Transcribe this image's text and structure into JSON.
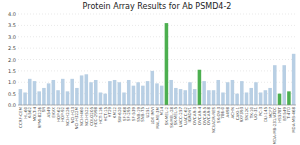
{
  "chart_data": {
    "type": "bar",
    "title": "Protein Array Results for Ab PSMD4-2",
    "categories": [
      "CCRF-CEM",
      "HL-60",
      "K-562",
      "MOLT-4",
      "RPMI-8226",
      "SR",
      "A549",
      "EKVX",
      "HOP-62",
      "HOP-92",
      "NCI-H226",
      "NCI-H23",
      "NCI-H322M",
      "NCI-H460",
      "NCI-H522",
      "COLO205",
      "HCC-2998",
      "HCT-116",
      "HCT-15",
      "HT29",
      "KM12",
      "SW-620",
      "SF-268",
      "SF-295",
      "SF-539",
      "SNB-19",
      "SNB-75",
      "U251",
      "LOX IMVI",
      "MALME-3M",
      "M14",
      "SK-MEL-2",
      "SK-MEL-28",
      "SK-MEL-5",
      "UACC-257",
      "UACC-62",
      "IGROV1",
      "OVCAR-3",
      "OVCAR-4",
      "OVCAR-5",
      "OVCAR-8",
      "NCI/ADR-RES",
      "SK-OV-3",
      "786-0",
      "A498",
      "ACHN",
      "CAKI-1",
      "RXF393",
      "SN12C",
      "TK-10",
      "UO-31",
      "PC-3",
      "DU-145",
      "MCF7",
      "MDA-MB-231/ATCC",
      "HS578T",
      "BT-549",
      "T-47D",
      "MDA-MB-468"
    ],
    "values": [
      0.7,
      0.55,
      1.15,
      1.05,
      0.6,
      0.75,
      0.95,
      1.1,
      0.65,
      1.15,
      0.6,
      1.15,
      0.75,
      1.3,
      1.35,
      1.0,
      1.1,
      0.55,
      0.5,
      1.05,
      1.1,
      1.0,
      0.55,
      1.1,
      0.85,
      1.0,
      0.85,
      1.05,
      1.5,
      0.95,
      0.85,
      3.6,
      1.1,
      0.75,
      0.7,
      0.65,
      1.0,
      0.7,
      1.55,
      1.05,
      0.65,
      0.65,
      1.1,
      0.55,
      1.0,
      1.1,
      0.5,
      1.05,
      0.55,
      0.75,
      1.0,
      0.55,
      0.65,
      0.75,
      1.75,
      0.5,
      1.75,
      0.6,
      2.25
    ],
    "colors": [
      "#b8cfe4",
      "#b8cfe4",
      "#b8cfe4",
      "#b8cfe4",
      "#b8cfe4",
      "#b8cfe4",
      "#b8cfe4",
      "#b8cfe4",
      "#b8cfe4",
      "#b8cfe4",
      "#b8cfe4",
      "#b8cfe4",
      "#b8cfe4",
      "#b8cfe4",
      "#b8cfe4",
      "#b8cfe4",
      "#b8cfe4",
      "#b8cfe4",
      "#b8cfe4",
      "#b8cfe4",
      "#b8cfe4",
      "#b8cfe4",
      "#b8cfe4",
      "#b8cfe4",
      "#b8cfe4",
      "#b8cfe4",
      "#b8cfe4",
      "#b8cfe4",
      "#b8cfe4",
      "#b8cfe4",
      "#b8cfe4",
      "#4caf50",
      "#b8cfe4",
      "#b8cfe4",
      "#b8cfe4",
      "#b8cfe4",
      "#b8cfe4",
      "#b8cfe4",
      "#4caf50",
      "#b8cfe4",
      "#b8cfe4",
      "#b8cfe4",
      "#b8cfe4",
      "#b8cfe4",
      "#b8cfe4",
      "#b8cfe4",
      "#b8cfe4",
      "#b8cfe4",
      "#b8cfe4",
      "#b8cfe4",
      "#b8cfe4",
      "#b8cfe4",
      "#b8cfe4",
      "#b8cfe4",
      "#b8cfe4",
      "#4caf50",
      "#b8cfe4",
      "#4caf50",
      "#b8cfe4"
    ],
    "ylim": [
      0,
      4.0
    ],
    "yticks": [
      {
        "value": 0.0,
        "label": "0.0"
      },
      0.5,
      {
        "value": 1.0,
        "label": "1.0"
      },
      1.5,
      {
        "value": 2.0,
        "label": "2.0"
      },
      2.5,
      {
        "value": 3.0,
        "label": "3.0"
      },
      3.5,
      {
        "value": 4.0,
        "label": "4.0"
      }
    ],
    "grid": true
  }
}
